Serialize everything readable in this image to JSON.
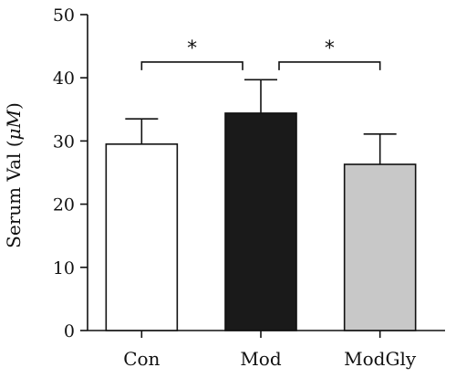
{
  "chart_data": {
    "type": "bar",
    "title": "",
    "xlabel": "",
    "ylabel": "Serum Val (μM)",
    "ylabel_parts": {
      "prefix": "Serum Val (",
      "unit": "μM",
      "suffix": ")"
    },
    "ylim": [
      0,
      50
    ],
    "yticks": [
      0,
      10,
      20,
      30,
      40,
      50
    ],
    "grid": false,
    "legend": "none",
    "categories": [
      "Con",
      "Mod",
      "ModGly"
    ],
    "values": [
      29.5,
      34.4,
      26.3
    ],
    "errors": [
      4.0,
      5.3,
      4.8
    ],
    "colors": [
      "#ffffff",
      "#1a1a1a",
      "#c8c8c8"
    ],
    "edge_color": "#111111",
    "significance": [
      {
        "from": 0,
        "to": 1,
        "label": "*",
        "y": 42.5
      },
      {
        "from": 1,
        "to": 2,
        "label": "*",
        "y": 42.5
      }
    ]
  }
}
